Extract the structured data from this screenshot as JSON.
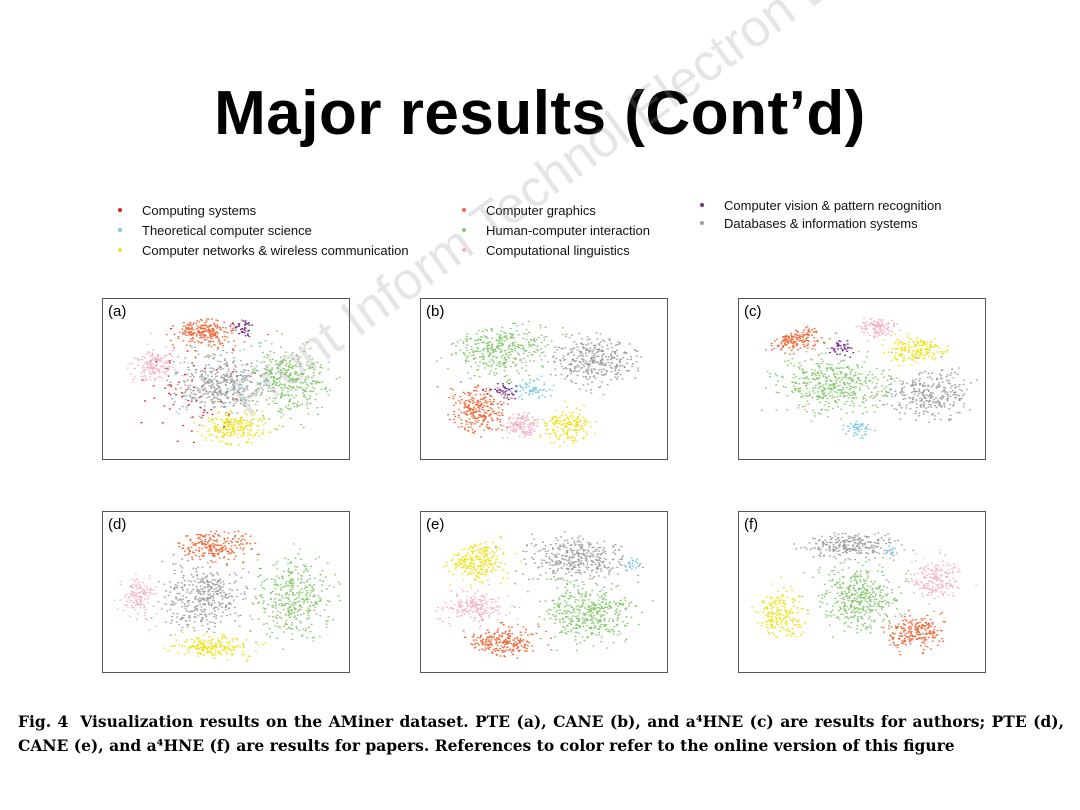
{
  "slide": {
    "title": "Major results (Cont’d)"
  },
  "legend": {
    "col1": [
      {
        "label": "Computing systems",
        "color": "#e3201b"
      },
      {
        "label": "Theoretical computer science",
        "color": "#7ec8e3"
      },
      {
        "label": "Computer networks & wireless communication",
        "color": "#ede21b"
      }
    ],
    "col2": [
      {
        "label": "Computer graphics",
        "color": "#ef6a3a"
      },
      {
        "label": "Human-computer interaction",
        "color": "#86c96e"
      },
      {
        "label": "Computational linguistics",
        "color": "#f4b2c8"
      }
    ],
    "col3": [
      {
        "label": "Computer vision & pattern recognition",
        "color": "#7b2b8a"
      },
      {
        "label": "Databases & information systems",
        "color": "#9e9e9e"
      }
    ]
  },
  "watermark": "Front Inform Technol Electron Eng",
  "panels": [
    {
      "label": "(a)"
    },
    {
      "label": "(b)"
    },
    {
      "label": "(c)"
    },
    {
      "label": "(d)"
    },
    {
      "label": "(e)"
    },
    {
      "label": "(f)"
    }
  ],
  "caption": {
    "fig": "Fig. 4",
    "text": "Visualization results on the AMiner dataset. PTE (a), CANE (b), and a⁴HNE (c) are results for authors; PTE (d), CANE (e), and a⁴HNE (f) are results for papers. References to color refer to the online version of this figure"
  }
}
